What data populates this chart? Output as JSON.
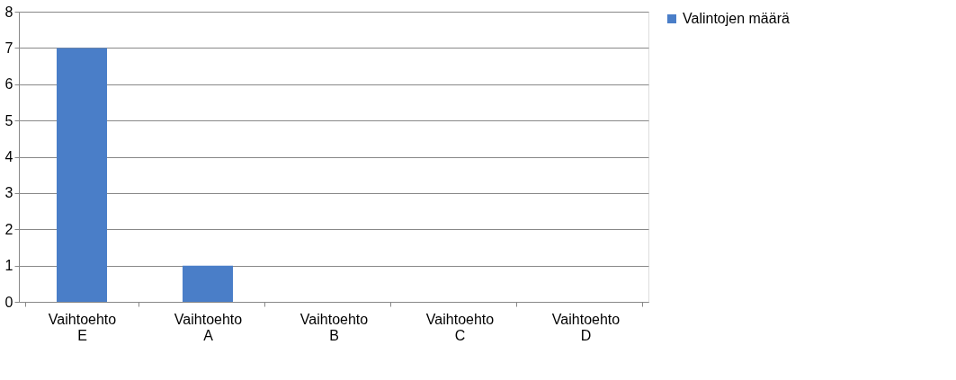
{
  "chart_data": {
    "type": "bar",
    "categories": [
      "Vaihtoehto E",
      "Vaihtoehto A",
      "Vaihtoehto B",
      "Vaihtoehto C",
      "Vaihtoehto D"
    ],
    "series": [
      {
        "name": "Valintojen määrä",
        "color": "#4a7ec8",
        "values": [
          7,
          1,
          0,
          0,
          0
        ]
      }
    ],
    "ylim": [
      0,
      8
    ],
    "yticks": [
      0,
      1,
      2,
      3,
      4,
      5,
      6,
      7,
      8
    ],
    "grid": "y",
    "legend": "right"
  }
}
